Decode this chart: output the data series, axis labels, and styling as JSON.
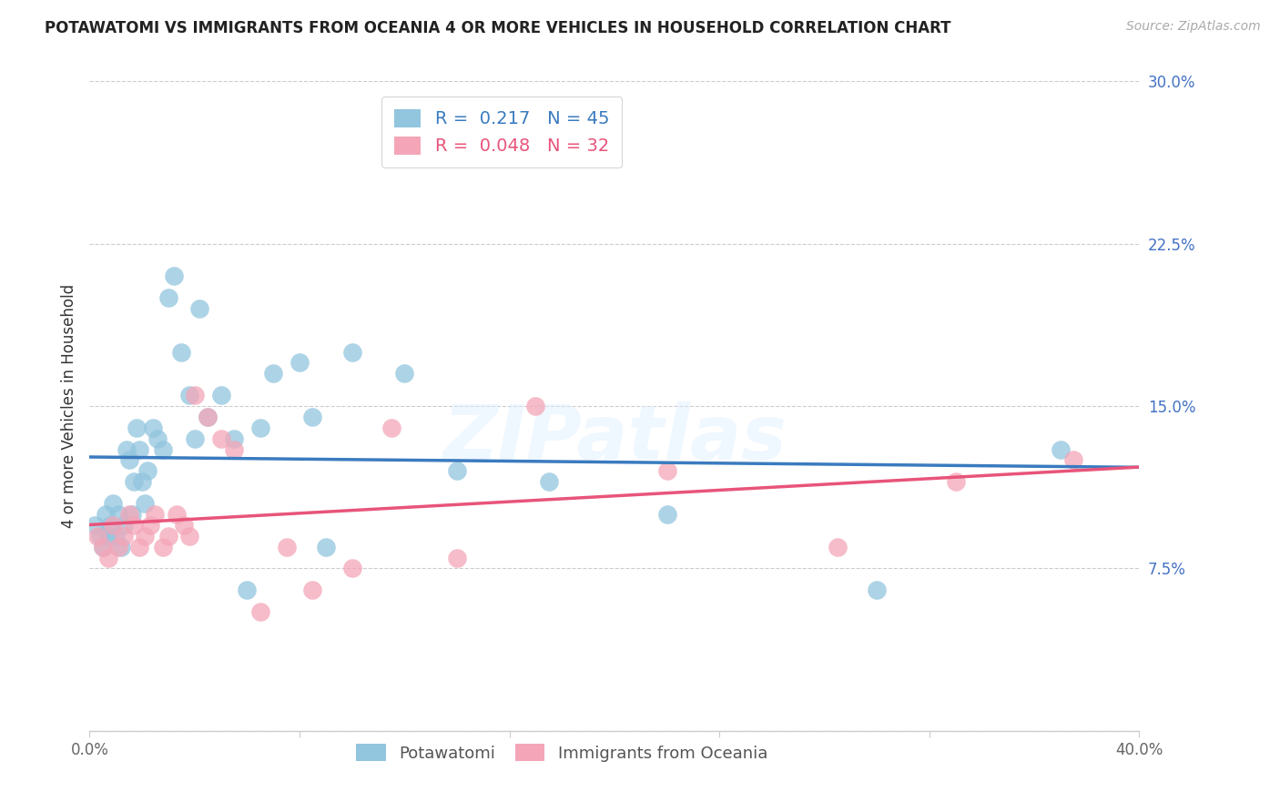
{
  "title": "POTAWATOMI VS IMMIGRANTS FROM OCEANIA 4 OR MORE VEHICLES IN HOUSEHOLD CORRELATION CHART",
  "source": "Source: ZipAtlas.com",
  "ylabel": "4 or more Vehicles in Household",
  "xlim": [
    0.0,
    0.4
  ],
  "ylim": [
    0.0,
    0.3
  ],
  "xticks": [
    0.0,
    0.08,
    0.16,
    0.24,
    0.32,
    0.4
  ],
  "yticks": [
    0.0,
    0.075,
    0.15,
    0.225,
    0.3
  ],
  "ytick_labels": [
    "",
    "7.5%",
    "15.0%",
    "22.5%",
    "30.0%"
  ],
  "xtick_labels": [
    "0.0%",
    "",
    "",
    "",
    "",
    "40.0%"
  ],
  "blue_R": 0.217,
  "blue_N": 45,
  "pink_R": 0.048,
  "pink_N": 32,
  "blue_color": "#92c5de",
  "pink_color": "#f4a6b8",
  "blue_line_color": "#3a7bbf",
  "pink_line_color": "#e8547a",
  "watermark": "ZIPatlas",
  "blue_scatter_x": [
    0.002,
    0.004,
    0.005,
    0.006,
    0.007,
    0.008,
    0.009,
    0.01,
    0.011,
    0.012,
    0.013,
    0.014,
    0.015,
    0.016,
    0.017,
    0.018,
    0.019,
    0.02,
    0.021,
    0.022,
    0.024,
    0.026,
    0.028,
    0.03,
    0.032,
    0.035,
    0.038,
    0.04,
    0.042,
    0.045,
    0.05,
    0.055,
    0.06,
    0.065,
    0.07,
    0.08,
    0.085,
    0.09,
    0.1,
    0.12,
    0.14,
    0.175,
    0.22,
    0.3,
    0.37
  ],
  "blue_scatter_y": [
    0.095,
    0.09,
    0.085,
    0.1,
    0.09,
    0.095,
    0.105,
    0.09,
    0.1,
    0.085,
    0.095,
    0.13,
    0.125,
    0.1,
    0.115,
    0.14,
    0.13,
    0.115,
    0.105,
    0.12,
    0.14,
    0.135,
    0.13,
    0.2,
    0.21,
    0.175,
    0.155,
    0.135,
    0.195,
    0.145,
    0.155,
    0.135,
    0.065,
    0.14,
    0.165,
    0.17,
    0.145,
    0.085,
    0.175,
    0.165,
    0.12,
    0.115,
    0.1,
    0.065,
    0.13
  ],
  "pink_scatter_x": [
    0.003,
    0.005,
    0.007,
    0.009,
    0.011,
    0.013,
    0.015,
    0.017,
    0.019,
    0.021,
    0.023,
    0.025,
    0.028,
    0.03,
    0.033,
    0.036,
    0.038,
    0.04,
    0.045,
    0.05,
    0.055,
    0.065,
    0.075,
    0.085,
    0.1,
    0.115,
    0.14,
    0.17,
    0.22,
    0.285,
    0.33,
    0.375
  ],
  "pink_scatter_y": [
    0.09,
    0.085,
    0.08,
    0.095,
    0.085,
    0.09,
    0.1,
    0.095,
    0.085,
    0.09,
    0.095,
    0.1,
    0.085,
    0.09,
    0.1,
    0.095,
    0.09,
    0.155,
    0.145,
    0.135,
    0.13,
    0.055,
    0.085,
    0.065,
    0.075,
    0.14,
    0.08,
    0.15,
    0.12,
    0.085,
    0.115,
    0.125
  ]
}
